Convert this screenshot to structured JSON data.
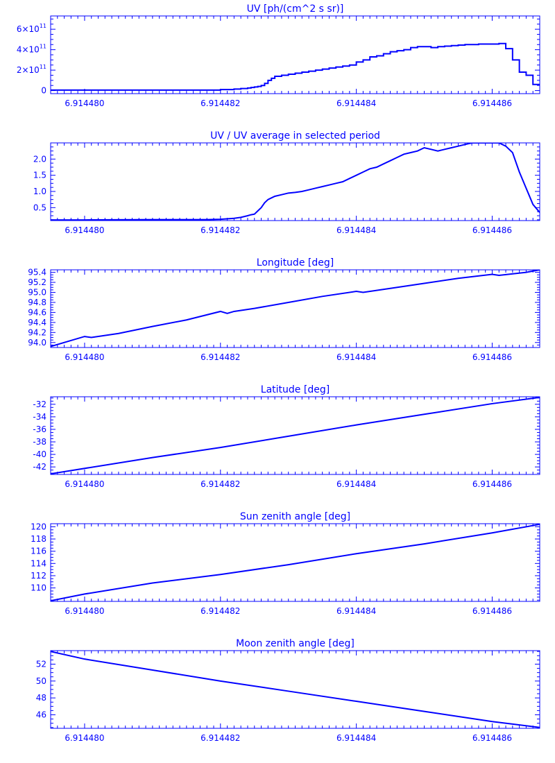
{
  "chart_data": [
    {
      "type": "line",
      "step": true,
      "title": "UV [ph/(cm^2 s sr)]",
      "xlabel": "",
      "ylabel": "",
      "xlim": [
        6.9144795,
        6.9144867
      ],
      "ylim": [
        -0.3,
        7.3
      ],
      "y_exponent_scale": "10^11",
      "xticks": [
        6.91448,
        6.914482,
        6.914484,
        6.914486
      ],
      "xtick_labels": [
        "6.914480",
        "6.914482",
        "6.914484",
        "6.914486"
      ],
      "yticks": [
        0,
        2,
        4,
        6
      ],
      "ytick_labels": [
        "0",
        "2×10",
        "4×10",
        "6×10"
      ],
      "ytick_exponents": [
        "",
        "11",
        "11",
        "11"
      ],
      "series": [
        {
          "x": [
            6.9144795,
            6.914482,
            6.9144822,
            6.9144823,
            6.9144824,
            6.91448245,
            6.9144825,
            6.91448255,
            6.9144826,
            6.91448265,
            6.9144827,
            6.91448275,
            6.9144828,
            6.9144829,
            6.914483,
            6.9144831,
            6.9144832,
            6.9144833,
            6.9144834,
            6.9144835,
            6.9144836,
            6.9144837,
            6.9144838,
            6.9144839,
            6.914484,
            6.9144841,
            6.9144842,
            6.9144843,
            6.9144844,
            6.9144845,
            6.9144846,
            6.9144847,
            6.9144848,
            6.9144849,
            6.914485,
            6.9144851,
            6.9144852,
            6.9144853,
            6.9144854,
            6.9144855,
            6.9144856,
            6.9144857,
            6.9144858,
            6.9144859,
            6.914486,
            6.9144861,
            6.9144862,
            6.9144863,
            6.9144864,
            6.9144865,
            6.9144866
          ],
          "y": [
            0.05,
            0.1,
            0.15,
            0.2,
            0.25,
            0.3,
            0.35,
            0.4,
            0.5,
            0.7,
            1.0,
            1.2,
            1.4,
            1.5,
            1.6,
            1.7,
            1.8,
            1.9,
            2.0,
            2.1,
            2.2,
            2.3,
            2.4,
            2.5,
            2.8,
            3.0,
            3.3,
            3.4,
            3.6,
            3.8,
            3.9,
            4.0,
            4.2,
            4.3,
            4.3,
            4.2,
            4.3,
            4.35,
            4.4,
            4.45,
            4.5,
            4.5,
            4.55,
            4.55,
            4.55,
            4.6,
            4.1,
            3.0,
            1.8,
            1.5,
            0.6
          ]
        }
      ]
    },
    {
      "type": "line",
      "title": "UV / UV average in selected period",
      "xlabel": "",
      "ylabel": "",
      "xlim": [
        6.9144795,
        6.9144867
      ],
      "ylim": [
        0.1,
        2.5
      ],
      "xticks": [
        6.91448,
        6.914482,
        6.914484,
        6.914486
      ],
      "xtick_labels": [
        "6.914480",
        "6.914482",
        "6.914484",
        "6.914486"
      ],
      "yticks": [
        0.5,
        1.0,
        1.5,
        2.0
      ],
      "ytick_labels": [
        "0.5",
        "1.0",
        "1.5",
        "2.0"
      ],
      "series": [
        {
          "x": [
            6.9144795,
            6.91448,
            6.914481,
            6.9144818,
            6.914482,
            6.9144822,
            6.9144823,
            6.9144824,
            6.91448245,
            6.9144825,
            6.91448255,
            6.9144826,
            6.91448265,
            6.9144827,
            6.91448275,
            6.9144828,
            6.9144829,
            6.914483,
            6.9144831,
            6.9144832,
            6.9144833,
            6.9144834,
            6.9144835,
            6.9144836,
            6.9144837,
            6.9144838,
            6.9144839,
            6.914484,
            6.9144841,
            6.9144842,
            6.9144843,
            6.9144844,
            6.9144845,
            6.9144846,
            6.9144847,
            6.9144848,
            6.9144849,
            6.914485,
            6.9144851,
            6.9144852,
            6.9144853,
            6.9144854,
            6.9144855,
            6.9144856,
            6.9144857,
            6.9144858,
            6.9144859,
            6.914486,
            6.9144861,
            6.9144862,
            6.9144863,
            6.9144864,
            6.9144865,
            6.9144866,
            6.9144867
          ],
          "y": [
            0.12,
            0.12,
            0.13,
            0.13,
            0.14,
            0.17,
            0.2,
            0.25,
            0.28,
            0.3,
            0.4,
            0.5,
            0.65,
            0.75,
            0.8,
            0.85,
            0.9,
            0.95,
            0.97,
            1.0,
            1.05,
            1.1,
            1.15,
            1.2,
            1.25,
            1.3,
            1.4,
            1.5,
            1.6,
            1.7,
            1.75,
            1.85,
            1.95,
            2.05,
            2.15,
            2.2,
            2.25,
            2.35,
            2.3,
            2.25,
            2.3,
            2.35,
            2.4,
            2.45,
            2.5,
            2.5,
            2.5,
            2.5,
            2.5,
            2.4,
            2.2,
            1.6,
            1.1,
            0.6,
            0.35
          ]
        }
      ]
    },
    {
      "type": "line",
      "title": "Longitude [deg]",
      "xlabel": "",
      "ylabel": "",
      "xlim": [
        6.9144795,
        6.9144867
      ],
      "ylim": [
        93.9,
        95.45
      ],
      "xticks": [
        6.91448,
        6.914482,
        6.914484,
        6.914486
      ],
      "xtick_labels": [
        "6.914480",
        "6.914482",
        "6.914484",
        "6.914486"
      ],
      "yticks": [
        94.0,
        94.2,
        94.4,
        94.6,
        94.8,
        95.0,
        95.2,
        95.4
      ],
      "ytick_labels": [
        "94.0",
        "94.2",
        "94.4",
        "94.6",
        "94.8",
        "95.0",
        "95.2",
        "95.4"
      ],
      "series": [
        {
          "x": [
            6.9144795,
            6.91448,
            6.9144801,
            6.9144805,
            6.914481,
            6.9144815,
            6.914482,
            6.9144821,
            6.9144822,
            6.9144825,
            6.914483,
            6.9144835,
            6.914484,
            6.9144841,
            6.9144845,
            6.914485,
            6.9144855,
            6.914486,
            6.9144861,
            6.9144865,
            6.9144867
          ],
          "y": [
            93.92,
            94.12,
            94.1,
            94.18,
            94.32,
            94.45,
            94.62,
            94.58,
            94.62,
            94.68,
            94.8,
            94.92,
            95.02,
            95.0,
            95.08,
            95.18,
            95.28,
            95.36,
            95.34,
            95.4,
            95.45
          ]
        }
      ]
    },
    {
      "type": "line",
      "title": "Latitude [deg]",
      "xlabel": "",
      "ylabel": "",
      "xlim": [
        6.9144795,
        6.9144867
      ],
      "ylim": [
        -43.2,
        -30.8
      ],
      "xticks": [
        6.91448,
        6.914482,
        6.914484,
        6.914486
      ],
      "xtick_labels": [
        "6.914480",
        "6.914482",
        "6.914484",
        "6.914486"
      ],
      "yticks": [
        -42,
        -40,
        -38,
        -36,
        -34,
        -32
      ],
      "ytick_labels": [
        "-42",
        "-40",
        "-38",
        "-36",
        "-34",
        "-32"
      ],
      "series": [
        {
          "x": [
            6.9144795,
            6.914481,
            6.914482,
            6.914483,
            6.914484,
            6.914485,
            6.914486,
            6.9144867
          ],
          "y": [
            -43.1,
            -40.5,
            -38.9,
            -37.1,
            -35.3,
            -33.6,
            -31.9,
            -30.9
          ]
        }
      ]
    },
    {
      "type": "line",
      "title": "Sun zenith angle [deg]",
      "xlabel": "",
      "ylabel": "",
      "xlim": [
        6.9144795,
        6.9144867
      ],
      "ylim": [
        107.8,
        120.5
      ],
      "xticks": [
        6.91448,
        6.914482,
        6.914484,
        6.914486
      ],
      "xtick_labels": [
        "6.914480",
        "6.914482",
        "6.914484",
        "6.914486"
      ],
      "yticks": [
        110,
        112,
        114,
        116,
        118,
        120
      ],
      "ytick_labels": [
        "110",
        "112",
        "114",
        "116",
        "118",
        "120"
      ],
      "series": [
        {
          "x": [
            6.9144795,
            6.91448,
            6.914481,
            6.914482,
            6.914483,
            6.914484,
            6.914485,
            6.914486,
            6.9144867
          ],
          "y": [
            107.9,
            109.0,
            110.8,
            112.2,
            113.8,
            115.6,
            117.2,
            119.0,
            120.4
          ]
        }
      ]
    },
    {
      "type": "line",
      "title": "Moon zenith angle [deg]",
      "xlabel": "",
      "ylabel": "",
      "xlim": [
        6.9144795,
        6.9144867
      ],
      "ylim": [
        44.4,
        53.6
      ],
      "xticks": [
        6.91448,
        6.914482,
        6.914484,
        6.914486
      ],
      "xtick_labels": [
        "6.914480",
        "6.914482",
        "6.914484",
        "6.914486"
      ],
      "yticks": [
        46,
        48,
        50,
        52
      ],
      "ytick_labels": [
        "46",
        "48",
        "50",
        "52"
      ],
      "series": [
        {
          "x": [
            6.9144795,
            6.91448,
            6.914481,
            6.914482,
            6.914483,
            6.914484,
            6.914485,
            6.914486,
            6.9144867
          ],
          "y": [
            53.5,
            52.6,
            51.3,
            50.0,
            48.8,
            47.6,
            46.4,
            45.2,
            44.5
          ]
        }
      ]
    }
  ],
  "colors": {
    "line": "#0000ff",
    "axis": "#0000ff",
    "background": "#ffffff"
  }
}
